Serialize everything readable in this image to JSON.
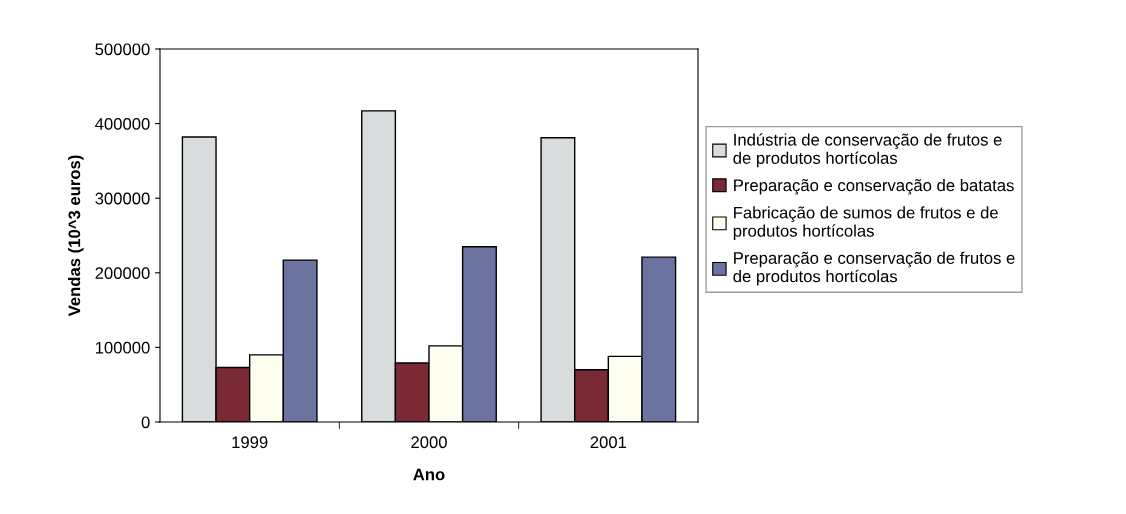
{
  "chart_data": {
    "type": "bar",
    "xlabel": "Ano",
    "ylabel": "Vendas (10^3 euros)",
    "categories": [
      "1999",
      "2000",
      "2001"
    ],
    "series": [
      {
        "name": "Indústria de conservação de frutos e\nde produtos hortícolas",
        "color": "#d8dcdc",
        "values": [
          382000,
          417000,
          381000
        ]
      },
      {
        "name": "Preparação e conservação de batatas",
        "color": "#7a2a35",
        "values": [
          73000,
          79000,
          70000
        ]
      },
      {
        "name": "Fabricação de sumos de frutos e de\nprodutos hortícolas",
        "color": "#fdfdf0",
        "values": [
          90000,
          102000,
          88000
        ]
      },
      {
        "name": "Preparação e conservação de frutos e\nde produtos hortícolas",
        "color": "#6d73a0",
        "values": [
          217000,
          235000,
          221000
        ]
      }
    ],
    "ylim": [
      0,
      500000
    ],
    "yticks": [
      0,
      100000,
      200000,
      300000,
      400000,
      500000
    ],
    "grid": false,
    "legend": "right"
  }
}
